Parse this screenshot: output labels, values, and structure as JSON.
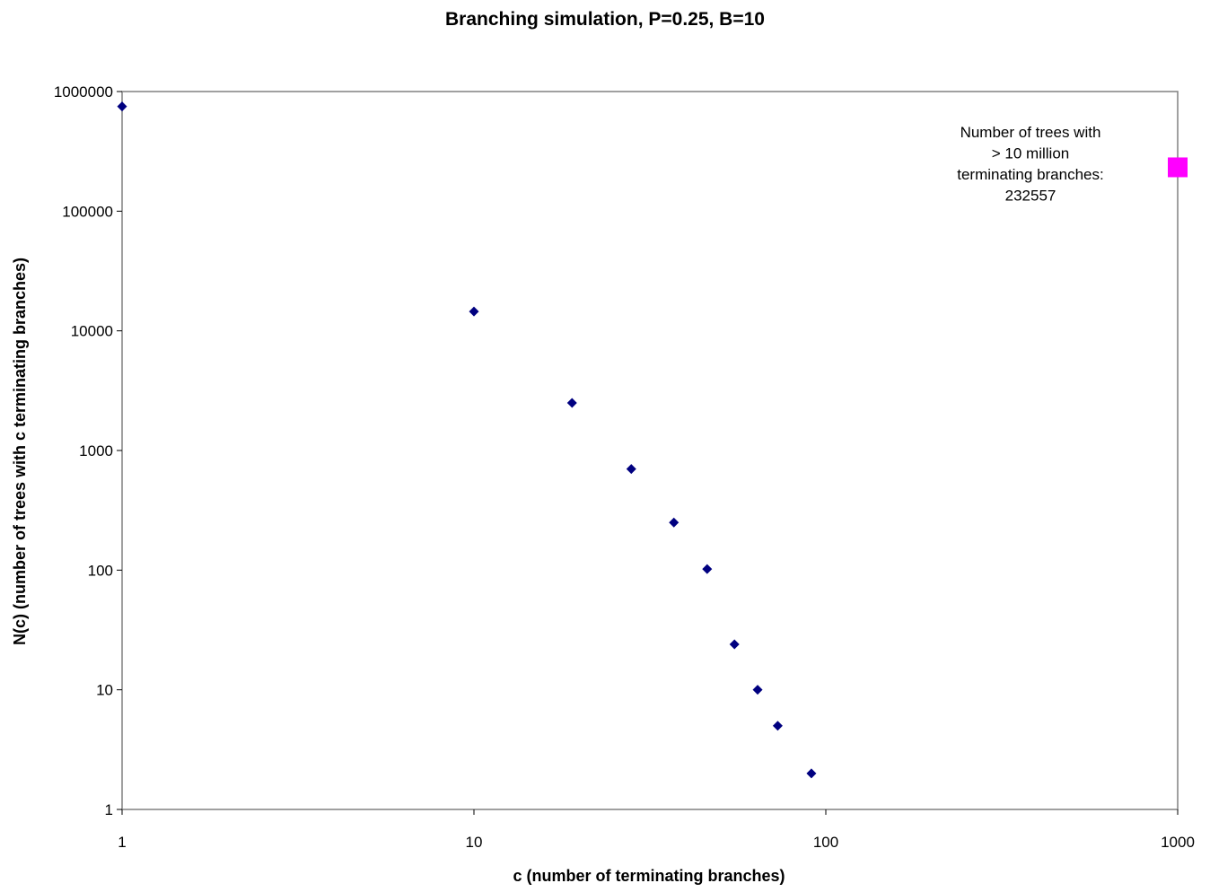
{
  "chart_data": {
    "type": "scatter",
    "title": "Branching simulation, P=0.25, B=10",
    "xlabel": "c (number of terminating branches)",
    "ylabel": "N(c) (number of trees with c terminating branches)",
    "x_scale": "log",
    "y_scale": "log",
    "xlim": [
      1,
      1000
    ],
    "ylim": [
      1,
      1000000
    ],
    "x_ticks": [
      "1",
      "10",
      "100",
      "1000"
    ],
    "y_ticks": [
      "1",
      "10",
      "100",
      "1000",
      "10000",
      "100000",
      "1000000"
    ],
    "grid": false,
    "series": [
      {
        "marker": "diamond",
        "color": "#000080",
        "points": [
          {
            "x": 1,
            "y": 750000
          },
          {
            "x": 10,
            "y": 14500
          },
          {
            "x": 19,
            "y": 2500
          },
          {
            "x": 28,
            "y": 700
          },
          {
            "x": 37,
            "y": 250
          },
          {
            "x": 46,
            "y": 102
          },
          {
            "x": 55,
            "y": 24
          },
          {
            "x": 64,
            "y": 10
          },
          {
            "x": 73,
            "y": 5
          },
          {
            "x": 91,
            "y": 2
          }
        ]
      },
      {
        "marker": "square",
        "color": "#ff00ff",
        "points": [
          {
            "x": 1000,
            "y": 232557
          }
        ]
      }
    ],
    "annotation": {
      "lines": [
        "Number of trees with",
        "> 10 million",
        "terminating branches:",
        "232557"
      ]
    }
  }
}
